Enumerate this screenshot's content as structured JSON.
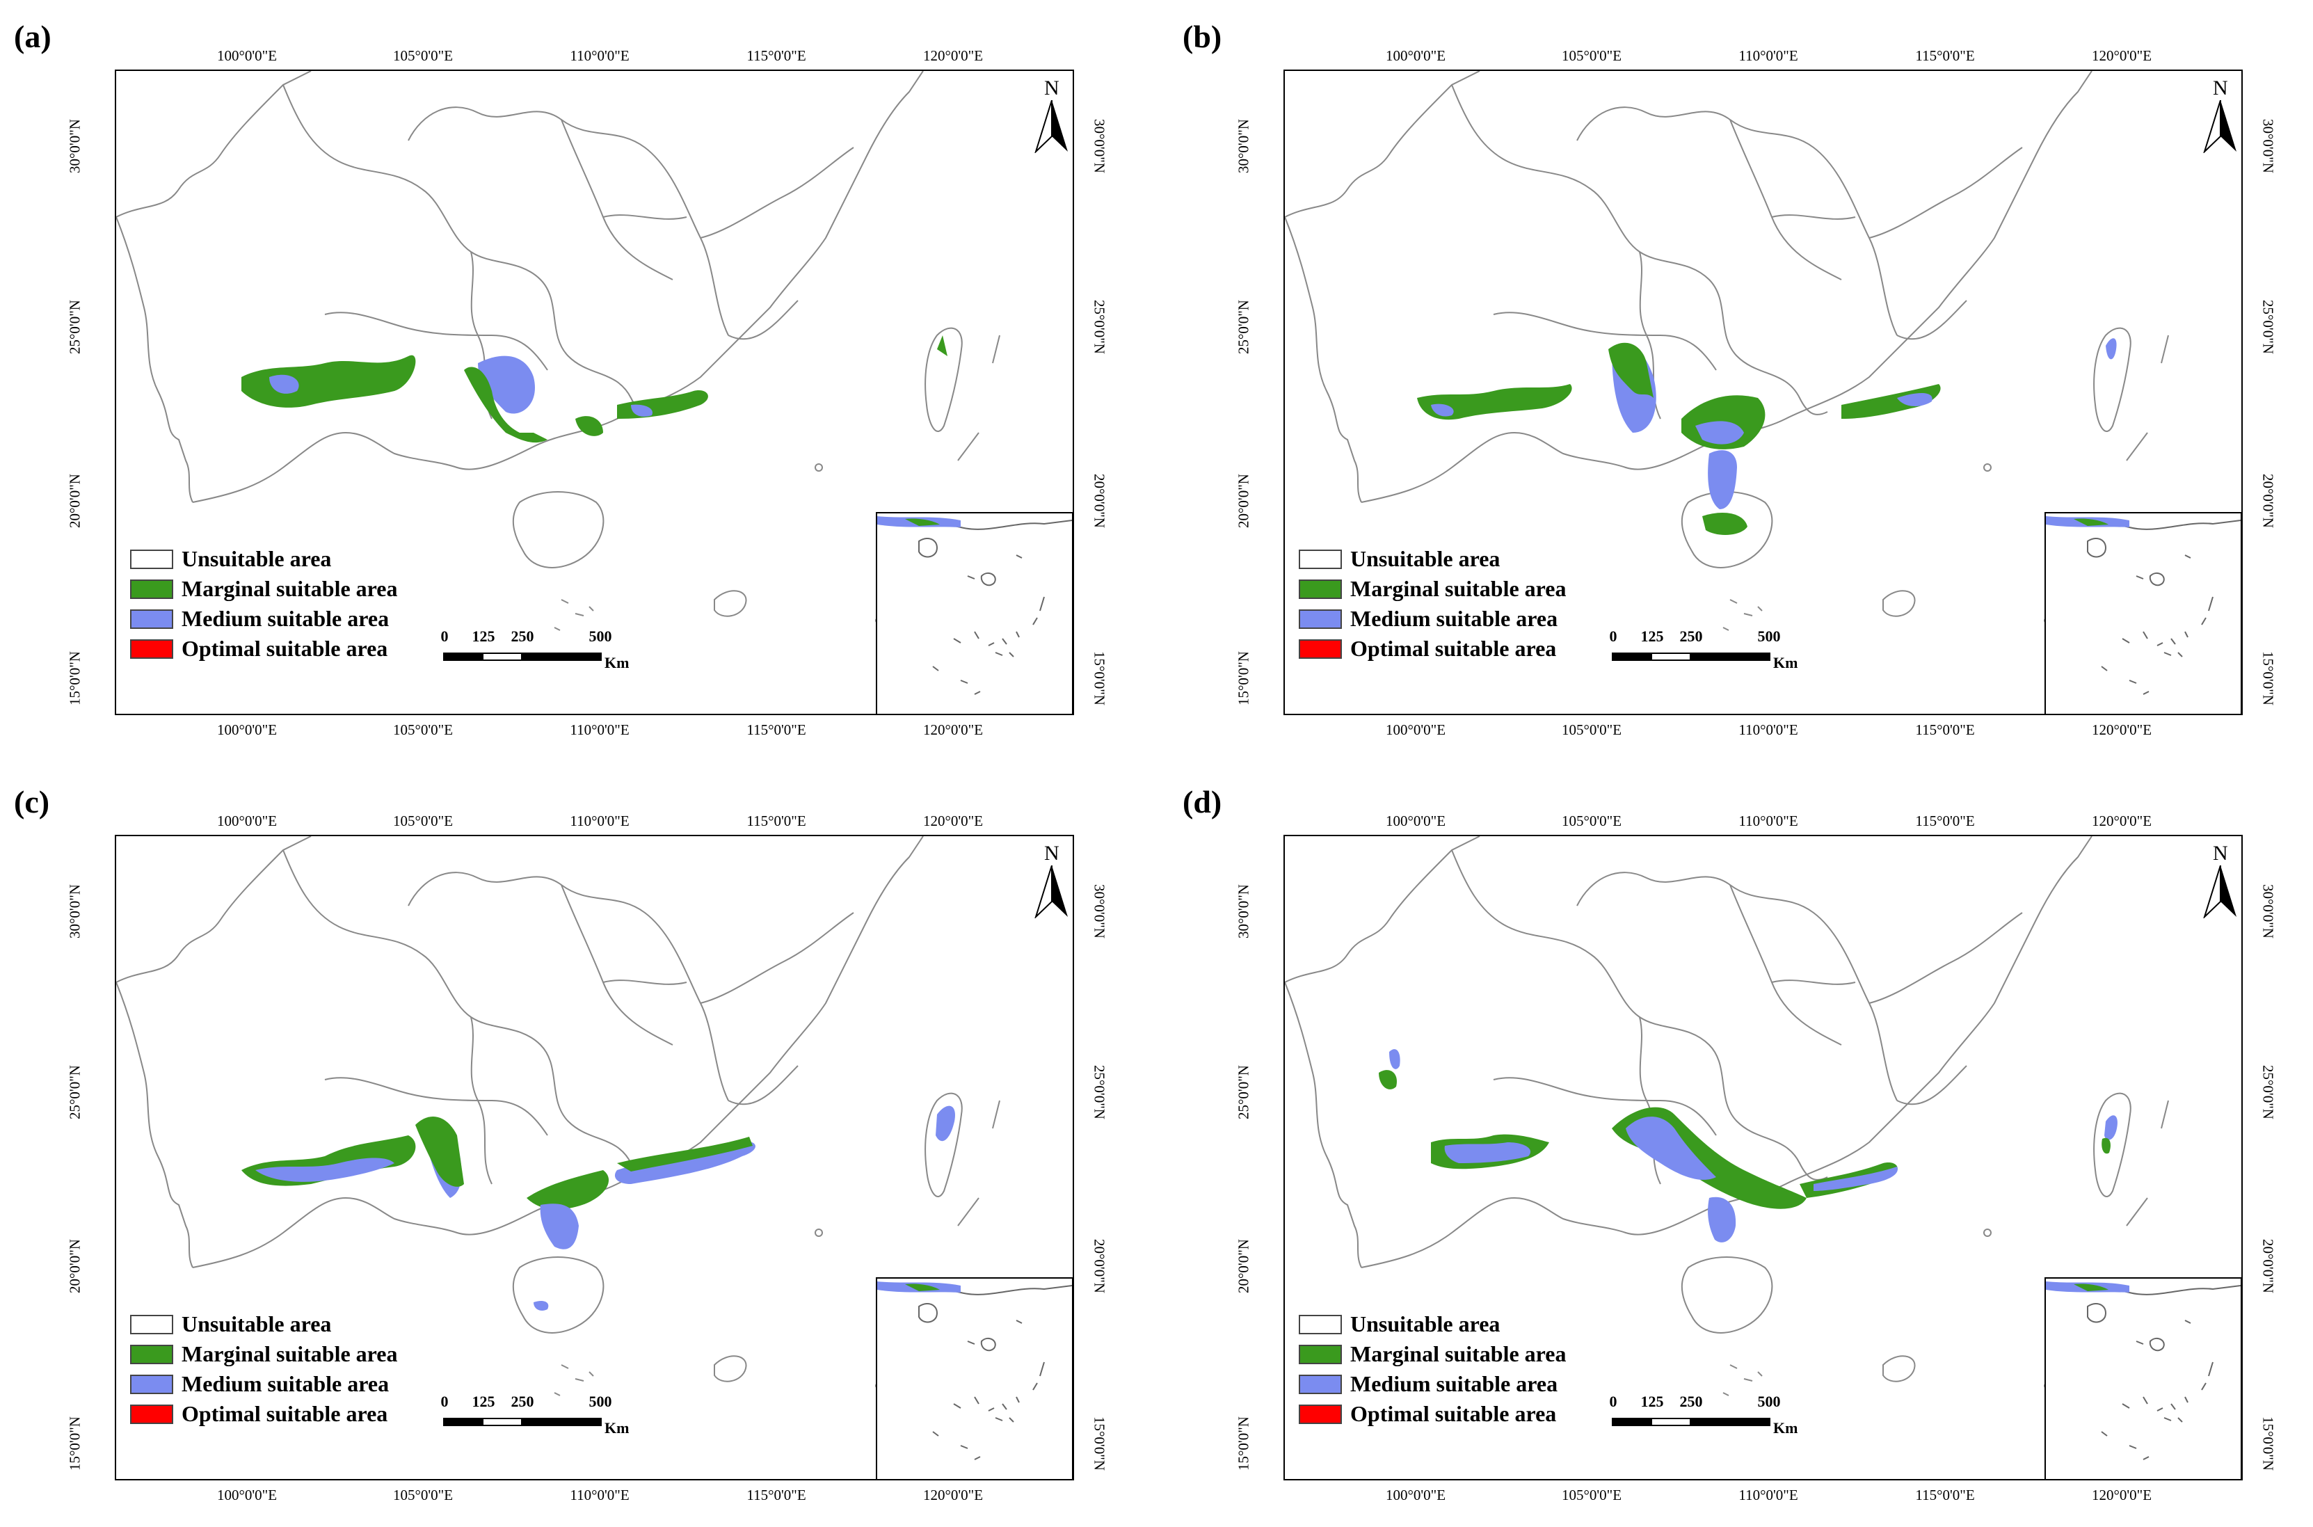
{
  "colors": {
    "unsuitable": "#ffffff",
    "marginal": "#3a9a1e",
    "medium": "#7b8cf0",
    "optimal": "#ff0000",
    "outline": "#777777"
  },
  "legend": [
    {
      "key": "unsuitable",
      "label": "Unsuitable area"
    },
    {
      "key": "marginal",
      "label": "Marginal suitable area"
    },
    {
      "key": "medium",
      "label": "Medium suitable area"
    },
    {
      "key": "optimal",
      "label": "Optimal suitable area"
    }
  ],
  "lon_ticks": [
    "100°0'0\"E",
    "105°0'0\"E",
    "110°0'0\"E",
    "115°0'0\"E",
    "120°0'0\"E"
  ],
  "lat_ticks": [
    "30°0'0\"N",
    "25°0'0\"N",
    "20°0'0\"N",
    "15°0'0\"N"
  ],
  "scale": {
    "labels": [
      "0",
      "125",
      "250",
      "500"
    ],
    "unit": "Km"
  },
  "north_label": "N",
  "panels": [
    {
      "label": "(a)"
    },
    {
      "label": "(b)"
    },
    {
      "label": "(c)"
    },
    {
      "label": "(d)"
    }
  ]
}
